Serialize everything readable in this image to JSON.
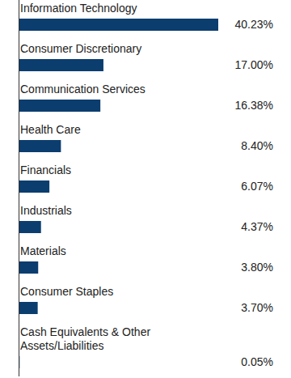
{
  "chart_data": {
    "type": "bar",
    "orientation": "horizontal",
    "categories": [
      "Information Technology",
      "Consumer Discretionary",
      "Communication Services",
      "Health Care",
      "Financials",
      "Industrials",
      "Materials",
      "Consumer Staples",
      "Cash Equivalents & Other Assets/Liabilities"
    ],
    "values": [
      40.23,
      17.0,
      16.38,
      8.4,
      6.07,
      4.37,
      3.8,
      3.7,
      0.05
    ],
    "value_labels": [
      "40.23%",
      "17.00%",
      "16.38%",
      "8.40%",
      "6.07%",
      "4.37%",
      "3.80%",
      "3.70%",
      "0.05%"
    ],
    "color": "#0b3d6f",
    "xlim": [
      0,
      40.23
    ],
    "data_labels": true,
    "tick_labels": false,
    "grid": false
  }
}
